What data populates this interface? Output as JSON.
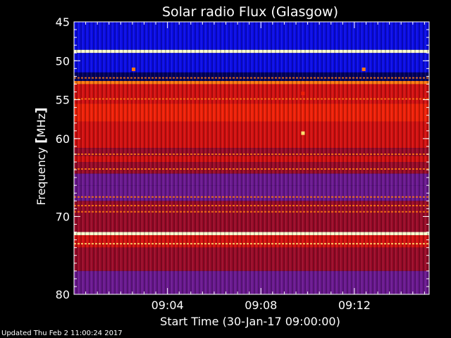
{
  "chart_data": {
    "type": "heatmap",
    "title": "Solar radio Flux (Glasgow)",
    "xlabel": "Start Time (30-Jan-17 09:00:00)",
    "ylabel_prefix": "Frequency ",
    "ylabel_bracket_open": "[",
    "ylabel_unit": "MHz",
    "ylabel_bracket_close": "]",
    "x_unit": "minutes after 09:00:00",
    "xlim": [
      0,
      15.2
    ],
    "x_ticks": [
      {
        "value": 4,
        "label": "09:04"
      },
      {
        "value": 8,
        "label": "09:08"
      },
      {
        "value": 12,
        "label": "09:12"
      }
    ],
    "y_unit": "MHz",
    "ylim": [
      45,
      80
    ],
    "y_ticks": [
      {
        "value": 45,
        "label": "45"
      },
      {
        "value": 50,
        "label": "50"
      },
      {
        "value": 55,
        "label": "55"
      },
      {
        "value": 60,
        "label": "60"
      },
      {
        "value": 70,
        "label": "70"
      },
      {
        "value": 80,
        "label": "80"
      }
    ],
    "colors": {
      "blue": "#0a0ce6",
      "navy": "#000060",
      "purple": "#6a1890",
      "maroon": "#9a0a28",
      "red": "#d41010",
      "bright_red": "#f02008",
      "orange": "#ff7a10",
      "yellow": "#ffe070",
      "white": "#ffffd0"
    },
    "bands": [
      {
        "from": 45.0,
        "to": 48.6,
        "color": "blue"
      },
      {
        "from": 48.6,
        "to": 49.0,
        "color": "white"
      },
      {
        "from": 49.0,
        "to": 51.5,
        "color": "blue"
      },
      {
        "from": 51.5,
        "to": 52.6,
        "color": "navy"
      },
      {
        "from": 52.6,
        "to": 53.0,
        "color": "orange"
      },
      {
        "from": 53.0,
        "to": 55.5,
        "color": "red"
      },
      {
        "from": 55.5,
        "to": 57.8,
        "color": "bright_red"
      },
      {
        "from": 57.8,
        "to": 61.2,
        "color": "red"
      },
      {
        "from": 61.2,
        "to": 62.2,
        "color": "maroon"
      },
      {
        "from": 62.2,
        "to": 63.0,
        "color": "red"
      },
      {
        "from": 63.0,
        "to": 64.5,
        "color": "maroon"
      },
      {
        "from": 64.5,
        "to": 66.0,
        "color": "purple"
      },
      {
        "from": 66.0,
        "to": 68.0,
        "color": "purple"
      },
      {
        "from": 68.0,
        "to": 72.0,
        "color": "maroon"
      },
      {
        "from": 72.0,
        "to": 72.4,
        "color": "white"
      },
      {
        "from": 72.4,
        "to": 74.0,
        "color": "red"
      },
      {
        "from": 74.0,
        "to": 77.0,
        "color": "maroon"
      },
      {
        "from": 77.0,
        "to": 80.0,
        "color": "purple"
      }
    ],
    "lines": [
      {
        "freq": 52.2,
        "color": "orange"
      },
      {
        "freq": 54.9,
        "color": "orange"
      },
      {
        "freq": 62.0,
        "color": "orange"
      },
      {
        "freq": 63.9,
        "color": "orange"
      },
      {
        "freq": 67.5,
        "color": "orange"
      },
      {
        "freq": 68.6,
        "color": "orange"
      },
      {
        "freq": 69.4,
        "color": "orange"
      },
      {
        "freq": 73.5,
        "color": "yellow"
      }
    ],
    "spots": [
      {
        "time": 2.55,
        "freq": 51.1,
        "color": "orange"
      },
      {
        "time": 12.4,
        "freq": 51.1,
        "color": "orange"
      },
      {
        "time": 9.8,
        "freq": 59.3,
        "color": "yellow"
      },
      {
        "time": 9.8,
        "freq": 54.2,
        "color": "bright_red"
      }
    ]
  },
  "footer": {
    "updated": "Updated Thu Feb  2 11:00:24 2017"
  }
}
